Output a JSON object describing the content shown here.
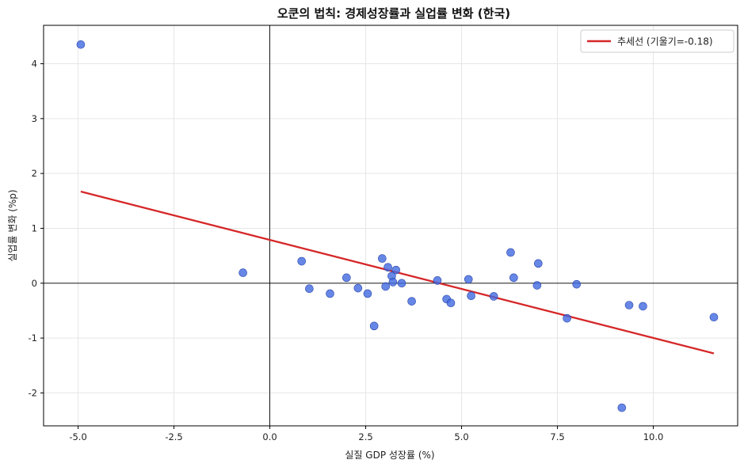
{
  "chart_data": {
    "type": "scatter",
    "title": "오쿤의 법칙: 경제성장률과 실업률 변화 (한국)",
    "xlabel": "실질 GDP 성장률 (%)",
    "ylabel": "실업률 변화 (%p)",
    "xlim": [
      -5.9,
      12.2
    ],
    "ylim": [
      -2.6,
      4.7
    ],
    "xticks": [
      -5.0,
      -2.5,
      0.0,
      2.5,
      5.0,
      7.5,
      10.0
    ],
    "xtick_labels": [
      "-5.0",
      "-2.5",
      "0.0",
      "2.5",
      "5.0",
      "7.5",
      "10.0"
    ],
    "yticks": [
      -2,
      -1,
      0,
      1,
      2,
      3,
      4
    ],
    "ytick_labels": [
      "-2",
      "-1",
      "0",
      "1",
      "2",
      "3",
      "4"
    ],
    "grid": true,
    "reference_lines": {
      "x": 0,
      "y": 0
    },
    "legend": {
      "position": "top-right",
      "entries": [
        {
          "label": "추세선 (기울기=-0.18)",
          "color": "#d62728"
        }
      ]
    },
    "series": [
      {
        "type": "scatter",
        "color": "#4169e1",
        "points": [
          [
            -4.93,
            4.35
          ],
          [
            -0.7,
            0.19
          ],
          [
            0.83,
            0.4
          ],
          [
            1.03,
            -0.1
          ],
          [
            1.57,
            -0.19
          ],
          [
            2.0,
            0.1
          ],
          [
            2.3,
            -0.09
          ],
          [
            2.55,
            -0.19
          ],
          [
            2.72,
            -0.78
          ],
          [
            2.93,
            0.45
          ],
          [
            3.02,
            -0.06
          ],
          [
            3.08,
            0.29
          ],
          [
            3.18,
            0.13
          ],
          [
            3.21,
            0.02
          ],
          [
            3.29,
            0.24
          ],
          [
            3.44,
            0.0
          ],
          [
            3.7,
            -0.33
          ],
          [
            4.37,
            0.05
          ],
          [
            4.61,
            -0.29
          ],
          [
            4.72,
            -0.36
          ],
          [
            5.18,
            0.07
          ],
          [
            5.25,
            -0.23
          ],
          [
            5.84,
            -0.24
          ],
          [
            6.28,
            0.56
          ],
          [
            6.36,
            0.1
          ],
          [
            6.97,
            -0.04
          ],
          [
            7.0,
            0.36
          ],
          [
            7.75,
            -0.64
          ],
          [
            8.0,
            -0.02
          ],
          [
            9.18,
            -2.27
          ],
          [
            9.37,
            -0.4
          ],
          [
            9.73,
            -0.42
          ],
          [
            11.58,
            -0.62
          ]
        ]
      },
      {
        "type": "line",
        "name": "추세선 (기울기=-0.18)",
        "color": "#d62728",
        "points": [
          [
            -4.93,
            1.67
          ],
          [
            11.58,
            -1.28
          ]
        ]
      }
    ]
  }
}
